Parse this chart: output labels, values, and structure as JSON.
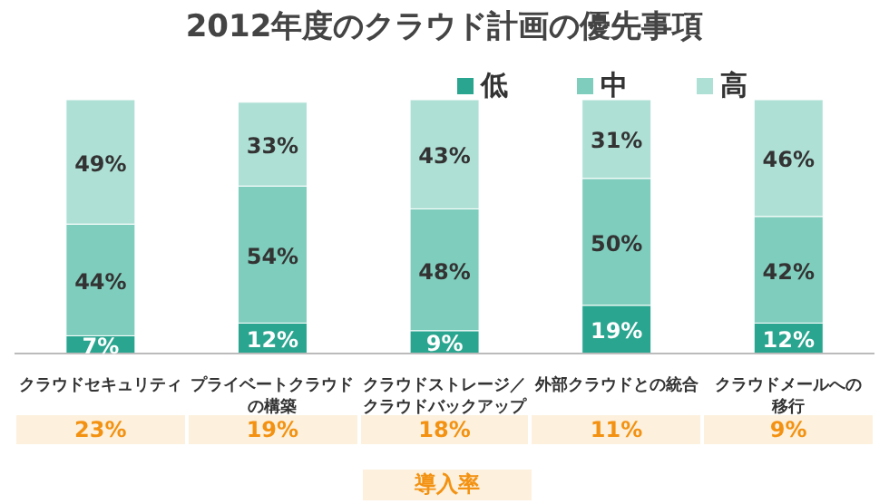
{
  "chart_data": {
    "type": "bar",
    "title": "2012年度のクラウド計画の優先事項",
    "categories": [
      "クラウドセキュリティ",
      "プライベートクラウドの構築",
      "クラウドストレージ／クラウドバックアップ",
      "外部クラウドとの統合",
      "クラウドメールへの移行"
    ],
    "stacked": true,
    "legend": "top right",
    "grid": false,
    "series": [
      {
        "name": "低",
        "color": "#2aa58f",
        "values": [
          7,
          12,
          9,
          19,
          12
        ],
        "value_labels": [
          "7%",
          "12%",
          "9%",
          "19%",
          "12%"
        ]
      },
      {
        "name": "中",
        "color": "#7fcdbd",
        "values": [
          44,
          54,
          48,
          50,
          42
        ],
        "value_labels": [
          "44%",
          "54%",
          "48%",
          "50%",
          "42%"
        ]
      },
      {
        "name": "高",
        "color": "#aee0d5",
        "values": [
          49,
          33,
          43,
          31,
          46
        ],
        "value_labels": [
          "49%",
          "33%",
          "43%",
          "31%",
          "46%"
        ]
      }
    ],
    "annotations": [
      "23%",
      "19%",
      "18%",
      "11%",
      "9%",
      "導入率"
    ]
  }
}
